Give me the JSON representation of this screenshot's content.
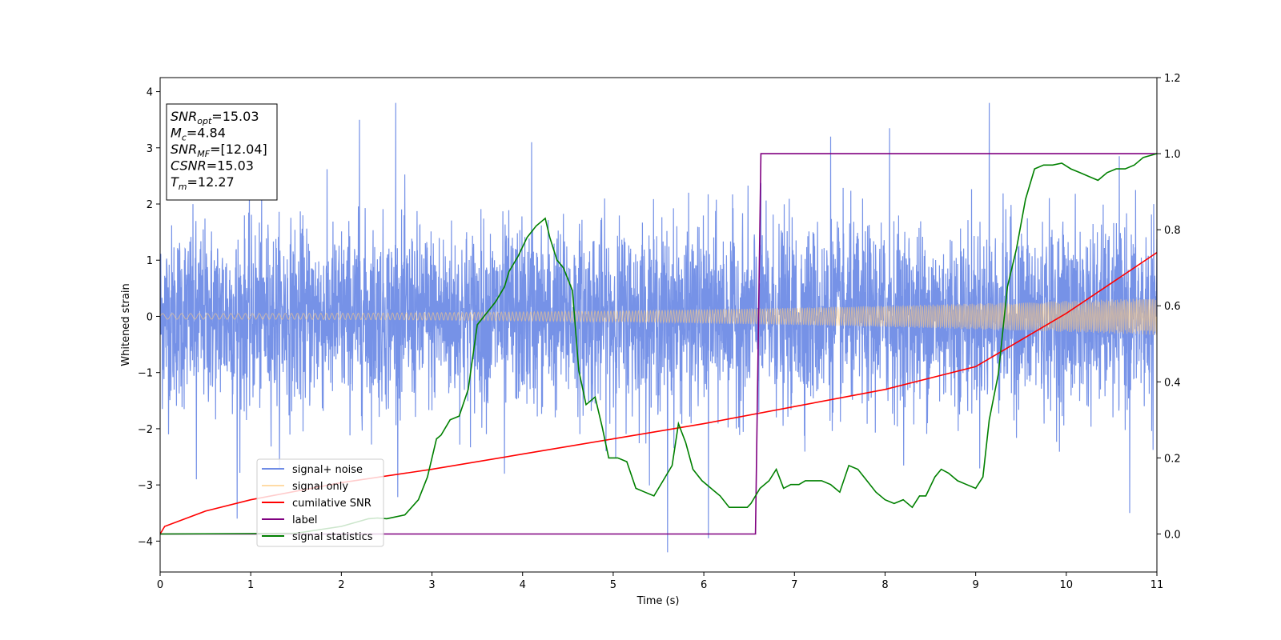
{
  "chart_data": {
    "type": "line",
    "title": "",
    "xlabel": "Time (s)",
    "ylabel": "Whitened strain",
    "xlim": [
      0,
      11
    ],
    "ylim_left": [
      -4.55,
      4.25
    ],
    "ylim_right": [
      -0.1,
      1.2
    ],
    "xticks": [
      "0",
      "1",
      "2",
      "3",
      "4",
      "5",
      "6",
      "7",
      "8",
      "9",
      "10",
      "11"
    ],
    "yticks_left": [
      "−4",
      "−3",
      "−2",
      "−1",
      "0",
      "1",
      "2",
      "3",
      "4"
    ],
    "yticks_right": [
      "0.0",
      "0.2",
      "0.4",
      "0.6",
      "0.8",
      "1.0",
      "1.2"
    ],
    "grid": false,
    "legend_position": "lower-left",
    "series": [
      {
        "name": "signal+ noise",
        "axis": "left",
        "color": "#6f8ce6",
        "noise_sigma": 0.8,
        "spikes": [
          {
            "x": 0.85,
            "y": -3.6
          },
          {
            "x": 2.2,
            "y": 3.5
          },
          {
            "x": 2.6,
            "y": 3.8
          },
          {
            "x": 4.1,
            "y": 3.1
          },
          {
            "x": 5.6,
            "y": -4.2
          },
          {
            "x": 6.05,
            "y": -3.95
          },
          {
            "x": 8.05,
            "y": 3.35
          },
          {
            "x": 9.15,
            "y": 3.8
          },
          {
            "x": 10.7,
            "y": -3.5
          },
          {
            "x": 0.4,
            "y": -2.9
          },
          {
            "x": 3.8,
            "y": -2.8
          },
          {
            "x": 7.4,
            "y": 3.2
          }
        ]
      },
      {
        "name": "signal only",
        "axis": "left",
        "color": "#ffcc80",
        "amplitude_start": 0.05,
        "amplitude_end": 0.33
      },
      {
        "name": "cumilative SNR",
        "axis": "right",
        "color": "#ff0000",
        "x": [
          0,
          0.05,
          0.5,
          1,
          2,
          3,
          4,
          5,
          6,
          7,
          8,
          9,
          10,
          11
        ],
        "y": [
          0,
          0.02,
          0.06,
          0.09,
          0.135,
          0.17,
          0.21,
          0.25,
          0.29,
          0.335,
          0.38,
          0.44,
          0.58,
          0.74
        ]
      },
      {
        "name": "label",
        "axis": "right",
        "color": "#800080",
        "x": [
          0,
          6.57,
          6.63,
          11
        ],
        "y": [
          0,
          0,
          1,
          1
        ]
      },
      {
        "name": "signal statistics",
        "axis": "right",
        "color": "#008000",
        "x": [
          0,
          1,
          1.5,
          2.0,
          2.3,
          2.4,
          2.5,
          2.7,
          2.85,
          2.95,
          3.05,
          3.1,
          3.2,
          3.3,
          3.4,
          3.5,
          3.6,
          3.7,
          3.8,
          3.85,
          3.95,
          4.05,
          4.15,
          4.25,
          4.3,
          4.38,
          4.45,
          4.55,
          4.62,
          4.7,
          4.8,
          4.88,
          4.95,
          5.05,
          5.15,
          5.25,
          5.35,
          5.45,
          5.55,
          5.65,
          5.72,
          5.8,
          5.88,
          5.98,
          6.08,
          6.18,
          6.28,
          6.38,
          6.48,
          6.52,
          6.62,
          6.72,
          6.8,
          6.88,
          6.96,
          7.05,
          7.12,
          7.2,
          7.3,
          7.4,
          7.5,
          7.6,
          7.7,
          7.8,
          7.9,
          8.0,
          8.1,
          8.2,
          8.3,
          8.38,
          8.45,
          8.55,
          8.62,
          8.7,
          8.8,
          8.9,
          9.0,
          9.08,
          9.15,
          9.25,
          9.35,
          9.45,
          9.55,
          9.65,
          9.75,
          9.85,
          9.95,
          10.05,
          10.15,
          10.25,
          10.35,
          10.45,
          10.55,
          10.65,
          10.75,
          10.85,
          11.0
        ],
        "y": [
          0,
          0.001,
          0.002,
          0.02,
          0.04,
          0.042,
          0.04,
          0.05,
          0.09,
          0.15,
          0.25,
          0.26,
          0.3,
          0.31,
          0.38,
          0.55,
          0.58,
          0.61,
          0.65,
          0.69,
          0.73,
          0.78,
          0.81,
          0.83,
          0.78,
          0.72,
          0.7,
          0.64,
          0.43,
          0.34,
          0.36,
          0.28,
          0.2,
          0.2,
          0.19,
          0.12,
          0.11,
          0.1,
          0.14,
          0.18,
          0.29,
          0.24,
          0.17,
          0.14,
          0.12,
          0.1,
          0.07,
          0.07,
          0.07,
          0.08,
          0.12,
          0.14,
          0.17,
          0.12,
          0.13,
          0.13,
          0.14,
          0.14,
          0.14,
          0.13,
          0.11,
          0.18,
          0.17,
          0.14,
          0.11,
          0.09,
          0.08,
          0.09,
          0.07,
          0.1,
          0.1,
          0.15,
          0.17,
          0.16,
          0.14,
          0.13,
          0.12,
          0.15,
          0.3,
          0.42,
          0.65,
          0.75,
          0.88,
          0.96,
          0.97,
          0.97,
          0.975,
          0.96,
          0.95,
          0.94,
          0.93,
          0.95,
          0.96,
          0.96,
          0.97,
          0.99,
          1.0
        ]
      }
    ],
    "annotations": [
      {
        "main": "SNR",
        "sub": "opt",
        "value": "=15.03"
      },
      {
        "main": "M",
        "sub": "c",
        "value": "=4.84"
      },
      {
        "main": "SNR",
        "sub": "MF",
        "value": "=[12.04]"
      },
      {
        "main": "CSNR",
        "sub": "",
        "value": "=15.03"
      },
      {
        "main": "T",
        "sub": "m",
        "value": "=12.27"
      }
    ]
  }
}
